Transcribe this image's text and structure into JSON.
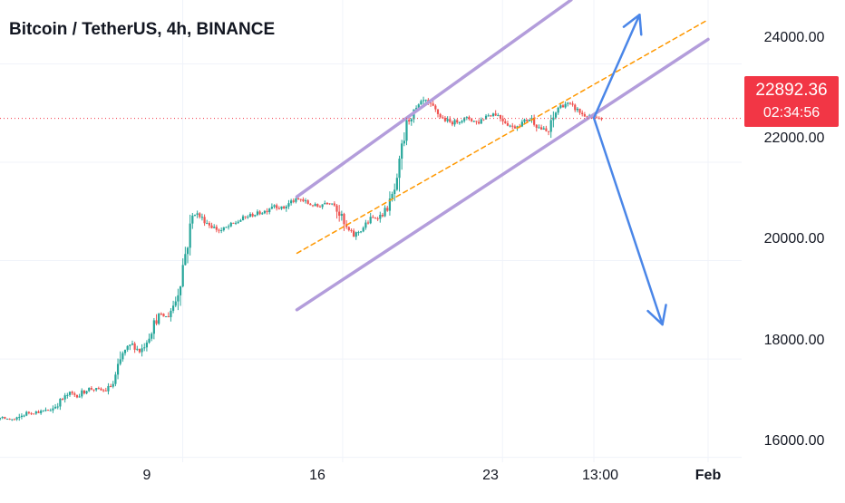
{
  "chart_data": {
    "type": "candlestick",
    "title": "Bitcoin / TetherUS, 4h, BINANCE",
    "ylim": [
      15900,
      25300
    ],
    "y_ticks": [
      "16000.00",
      "18000.00",
      "20000.00",
      "22000.00",
      "24000.00"
    ],
    "x_ticks": [
      "9",
      "16",
      "23",
      "13:00",
      "Feb"
    ],
    "grid": true,
    "current_price": "22892.36",
    "countdown": "02:34:56",
    "colors": {
      "up": "#26a69a",
      "down": "#ef5350",
      "channel": "#b39ddb",
      "midline": "#ff9800",
      "arrow": "#4a86e8",
      "price_line": "#f23645"
    },
    "trend_path": [
      16700,
      16650,
      16780,
      16830,
      16860,
      16800,
      16780,
      16760,
      16900,
      16920,
      16930,
      16980,
      17150,
      17300,
      17250,
      17400,
      17380,
      17350,
      17500,
      18100,
      18300,
      18150,
      18500,
      18900,
      18850,
      19200,
      20100,
      21000,
      20850,
      20700,
      20600,
      20700,
      20800,
      20900,
      20950,
      21000,
      21150,
      21050,
      21200,
      21250,
      21150,
      21100,
      21200,
      21150,
      20700,
      20500,
      20650,
      20850,
      20900,
      21100,
      21600,
      22800,
      23050,
      23250,
      23100,
      22900,
      22800,
      22850,
      22900,
      22800,
      22950,
      23000,
      22850,
      22700,
      22800,
      22900,
      22700,
      22600,
      23100,
      23200,
      23100,
      22950,
      22900,
      22850
    ],
    "channel": {
      "upper": [
        [
          "2023-01-14",
          21300
        ],
        [
          "2023-01-26",
          25300
        ]
      ],
      "lower": [
        [
          "2023-01-14",
          19000
        ],
        [
          "2023-01-27",
          22900
        ],
        [
          "2023-02-01",
          24500
        ]
      ],
      "mid": [
        [
          "2023-01-14",
          20150
        ],
        [
          "2023-02-01",
          24900
        ]
      ]
    },
    "arrows": {
      "up": [
        [
          "2023-01-27",
          22900
        ],
        [
          "2023-01-29",
          25000
        ]
      ],
      "down": [
        [
          "2023-01-27",
          22900
        ],
        [
          "2023-01-30",
          18700
        ]
      ]
    }
  }
}
